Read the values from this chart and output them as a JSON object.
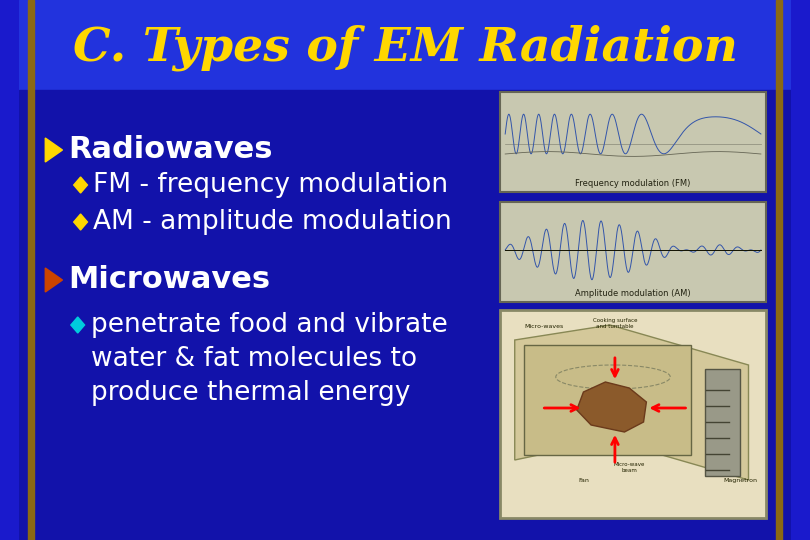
{
  "title": "C. Types of EM Radiation",
  "title_color": "#FFD700",
  "title_fontsize": 34,
  "bg_top": "#2222CC",
  "bg_body": "#1a1aCC",
  "border_color": "#8B6914",
  "border_width": 8,
  "text_color": "#FFFFFF",
  "bullet1_header": "Radiowaves",
  "bullet1_header_color": "#FFFFFF",
  "bullet1_arrow_color": "#FFD700",
  "bullet1_sub1": "FM - frequency modulation",
  "bullet1_sub2": "AM - amplitude modulation",
  "sub_diamond_color": "#FFD700",
  "bullet2_header": "Microwaves",
  "bullet2_arrow_color": "#CC4400",
  "bullet2_sub": "penetrate food and vibrate\nwater & fat molecules to\nproduce thermal energy",
  "sub_diamond_color2": "#00CCDD",
  "img_bg": "#C8C8B0",
  "fm_label": "Frequency modulation (FM)",
  "am_label": "Amplitude modulation (AM)"
}
